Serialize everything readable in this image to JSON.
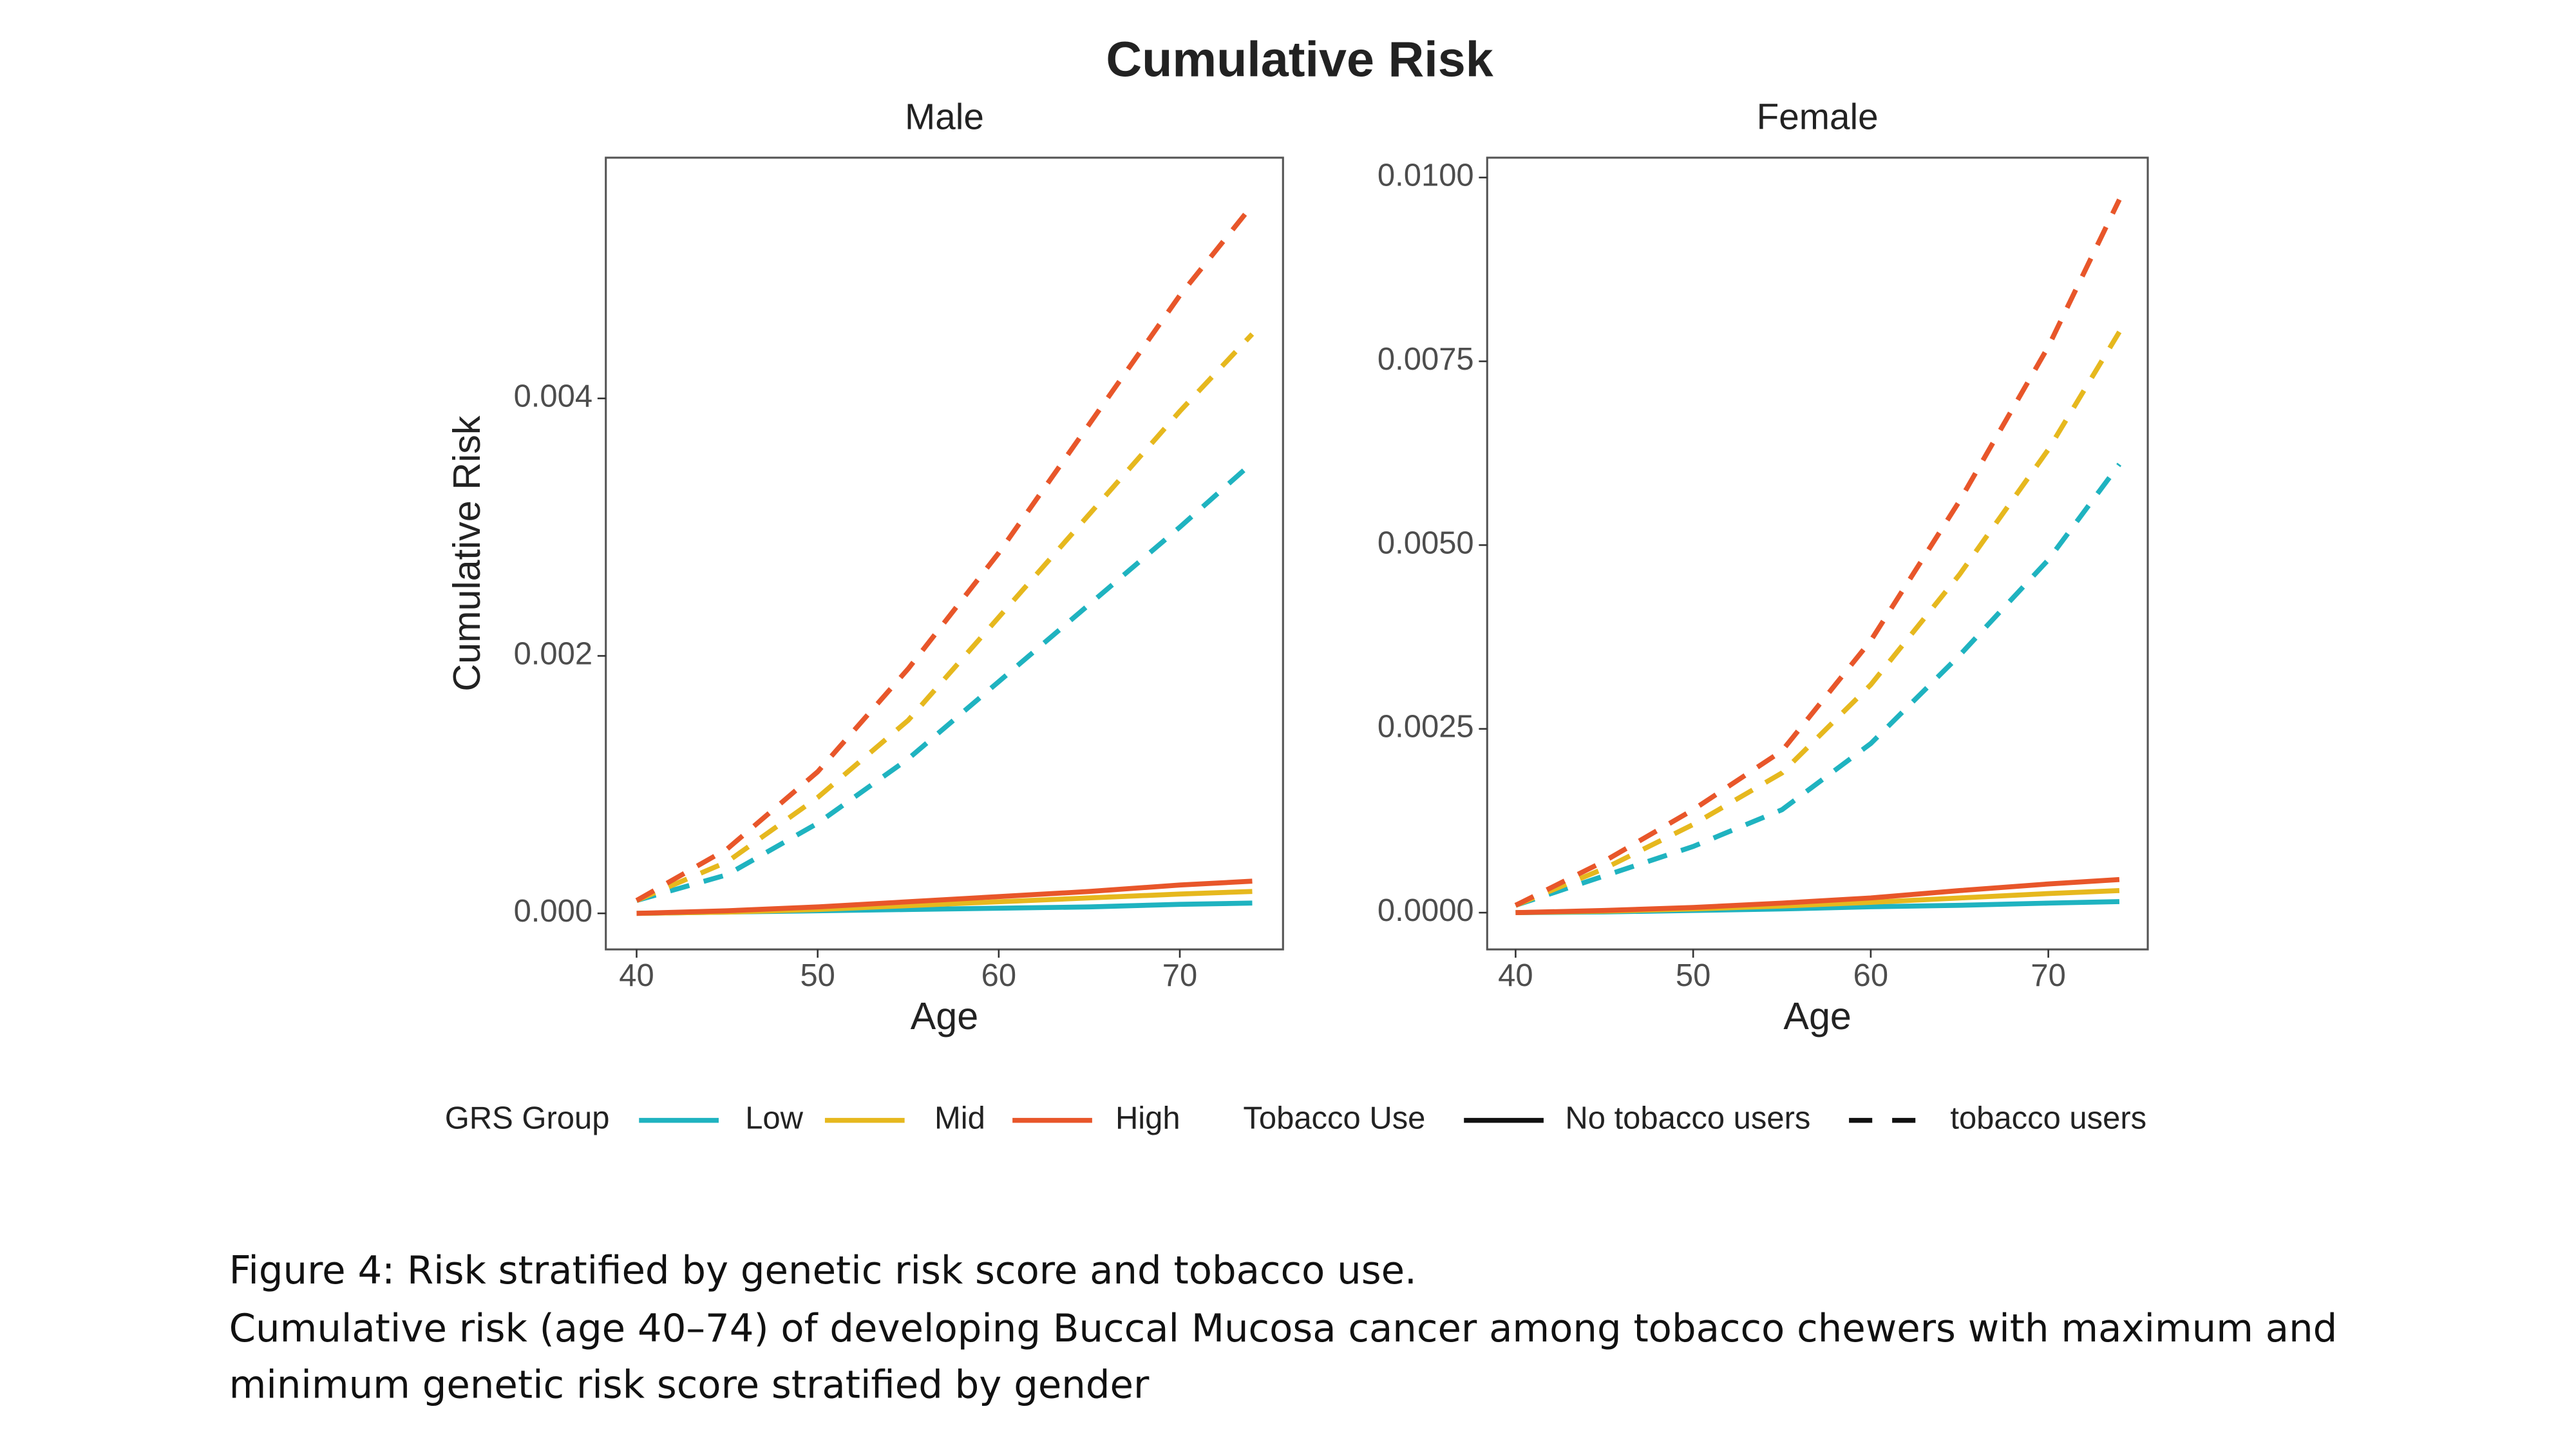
{
  "title": "Cumulative Risk",
  "chart_data": [
    {
      "type": "line",
      "title": "Male",
      "x_label": "Age",
      "y_label": "Cumulative Risk",
      "x": [
        40,
        45,
        50,
        55,
        60,
        65,
        70,
        74
      ],
      "xlim": [
        38.3,
        75.7
      ],
      "ylim": [
        -0.00028,
        0.00587
      ],
      "xticks": [
        40,
        50,
        60,
        70
      ],
      "yticks": [
        {
          "value": 0,
          "label": "0.000"
        },
        {
          "value": 0.002,
          "label": "0.002"
        },
        {
          "value": 0.004,
          "label": "0.004"
        }
      ],
      "series": [
        {
          "name": "Low",
          "tobacco": "No tobacco users",
          "color": "#1fb3c0",
          "dashed": false,
          "values": [
            0,
            1e-05,
            2e-05,
            3e-05,
            4e-05,
            5e-05,
            7e-05,
            8e-05
          ]
        },
        {
          "name": "Mid",
          "tobacco": "No tobacco users",
          "color": "#e6b81e",
          "dashed": false,
          "values": [
            0,
            1e-05,
            3e-05,
            6e-05,
            9e-05,
            0.00012,
            0.00015,
            0.00017
          ]
        },
        {
          "name": "High",
          "tobacco": "No tobacco users",
          "color": "#e8562a",
          "dashed": false,
          "values": [
            0,
            2e-05,
            5e-05,
            9e-05,
            0.00013,
            0.00017,
            0.00022,
            0.00025
          ]
        },
        {
          "name": "Low",
          "tobacco": "tobacco users",
          "color": "#1fb3c0",
          "dashed": true,
          "values": [
            0.0001,
            0.0003,
            0.0007,
            0.0012,
            0.0018,
            0.0024,
            0.003,
            0.0035
          ]
        },
        {
          "name": "Mid",
          "tobacco": "tobacco users",
          "color": "#e6b81e",
          "dashed": true,
          "values": [
            0.0001,
            0.0004,
            0.0009,
            0.0015,
            0.0023,
            0.0031,
            0.0039,
            0.0045
          ]
        },
        {
          "name": "High",
          "tobacco": "tobacco users",
          "color": "#e8562a",
          "dashed": true,
          "values": [
            0.0001,
            0.0005,
            0.0011,
            0.0019,
            0.0028,
            0.0038,
            0.0048,
            0.0055
          ]
        }
      ]
    },
    {
      "type": "line",
      "title": "Female",
      "x_label": "Age",
      "x": [
        40,
        45,
        50,
        55,
        60,
        65,
        70,
        74
      ],
      "xlim": [
        38.4,
        75.6
      ],
      "ylim": [
        -0.0005,
        0.01027
      ],
      "xticks": [
        40,
        50,
        60,
        70
      ],
      "yticks": [
        {
          "value": 0,
          "label": "0.0000"
        },
        {
          "value": 0.0025,
          "label": "0.0025"
        },
        {
          "value": 0.005,
          "label": "0.0050"
        },
        {
          "value": 0.0075,
          "label": "0.0075"
        },
        {
          "value": 0.01,
          "label": "0.0100"
        }
      ],
      "series": [
        {
          "name": "Low",
          "tobacco": "No tobacco users",
          "color": "#1fb3c0",
          "dashed": false,
          "values": [
            0,
            1e-05,
            3e-05,
            5e-05,
            8e-05,
            0.0001,
            0.00013,
            0.00015
          ]
        },
        {
          "name": "Mid",
          "tobacco": "No tobacco users",
          "color": "#e6b81e",
          "dashed": false,
          "values": [
            0,
            2e-05,
            5e-05,
            9e-05,
            0.00014,
            0.0002,
            0.00026,
            0.0003
          ]
        },
        {
          "name": "High",
          "tobacco": "No tobacco users",
          "color": "#e8562a",
          "dashed": false,
          "values": [
            0,
            3e-05,
            7e-05,
            0.00013,
            0.0002,
            0.0003,
            0.00039,
            0.00045
          ]
        },
        {
          "name": "Low",
          "tobacco": "tobacco users",
          "color": "#1fb3c0",
          "dashed": true,
          "values": [
            0.0001,
            0.0005,
            0.0009,
            0.0014,
            0.0023,
            0.0035,
            0.0048,
            0.0061
          ]
        },
        {
          "name": "Mid",
          "tobacco": "tobacco users",
          "color": "#e6b81e",
          "dashed": true,
          "values": [
            0.0001,
            0.0006,
            0.0012,
            0.0019,
            0.0031,
            0.0046,
            0.0063,
            0.0079
          ]
        },
        {
          "name": "High",
          "tobacco": "tobacco users",
          "color": "#e8562a",
          "dashed": true,
          "values": [
            0.0001,
            0.0007,
            0.0014,
            0.0022,
            0.0037,
            0.0056,
            0.0077,
            0.0097
          ]
        }
      ]
    }
  ],
  "legend": {
    "grs_title": "GRS Group",
    "grs": [
      {
        "name": "Low",
        "color": "#1fb3c0"
      },
      {
        "name": "Mid",
        "color": "#e6b81e"
      },
      {
        "name": "High",
        "color": "#e8562a"
      }
    ],
    "tobacco_title": "Tobacco Use",
    "tobacco": [
      {
        "name": "No tobacco users",
        "dashed": false
      },
      {
        "name": "tobacco users",
        "dashed": true
      }
    ]
  },
  "caption": [
    "Figure 4: Risk stratified by genetic risk score and tobacco use.",
    "Cumulative risk (age 40–74) of developing Buccal Mucosa cancer among tobacco chewers with maximum and",
    "minimum genetic risk score stratified by gender"
  ]
}
